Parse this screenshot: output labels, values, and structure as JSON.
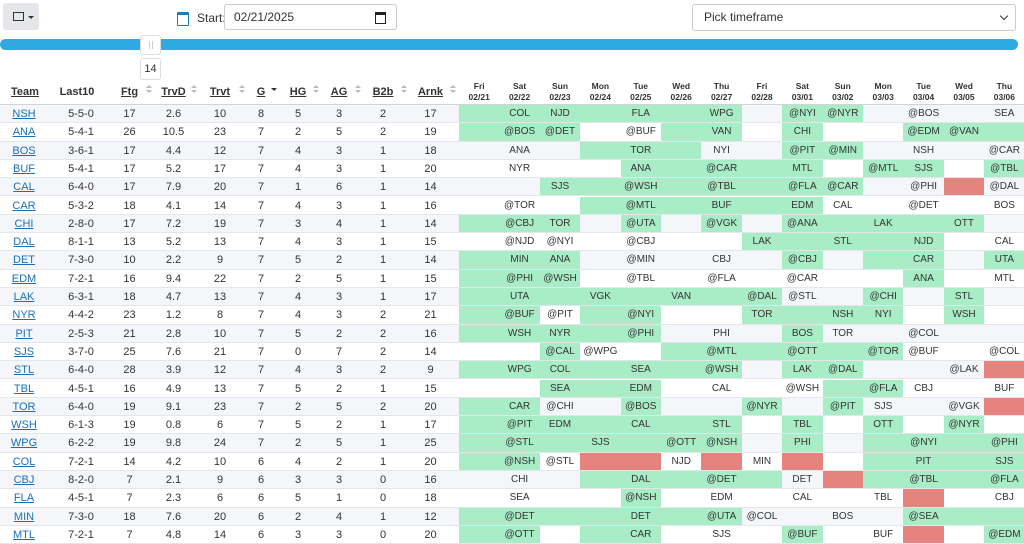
{
  "toolbar": {
    "start_label": "Start:",
    "start_date": "02/21/2025",
    "timeframe": "Pick timeframe",
    "slider_value": "14"
  },
  "table": {
    "columns": [
      "Team",
      "Last10",
      "Ftg",
      "TrvD",
      "Trvt",
      "G",
      "HG",
      "AG",
      "B2b",
      "Arnk"
    ],
    "dates": [
      [
        "Fri",
        "02/21"
      ],
      [
        "Sat",
        "02/22"
      ],
      [
        "Sun",
        "02/23"
      ],
      [
        "Mon",
        "02/24"
      ],
      [
        "Tue",
        "02/25"
      ],
      [
        "Wed",
        "02/26"
      ],
      [
        "Thu",
        "02/27"
      ],
      [
        "Fri",
        "02/28"
      ],
      [
        "Sat",
        "03/01"
      ],
      [
        "Sun",
        "03/02"
      ],
      [
        "Mon",
        "03/03"
      ],
      [
        "Tue",
        "03/04"
      ],
      [
        "Wed",
        "03/05"
      ],
      [
        "Thu",
        "03/06"
      ]
    ],
    "cell_colors": {
      "g": "#a8edc6",
      "r": "#e5837e",
      "w": ""
    },
    "rows": [
      {
        "team": "NSH",
        "stats": [
          "5-5-0",
          "17",
          "2.6",
          "10",
          "8",
          "5",
          "3",
          "2",
          "17"
        ],
        "games": [
          "",
          "COL",
          "NJD",
          "",
          "FLA",
          "",
          "WPG",
          "",
          "@NYI",
          "@NYR",
          "",
          "@BOS",
          "",
          "SEA"
        ],
        "status": "gggggggwggwwww"
      },
      {
        "team": "ANA",
        "stats": [
          "5-4-1",
          "26",
          "10.5",
          "23",
          "7",
          "2",
          "5",
          "2",
          "19"
        ],
        "games": [
          "",
          "@BOS",
          "@DET",
          "",
          "@BUF",
          "",
          "VAN",
          "",
          "CHI",
          "",
          "",
          "@EDM",
          "@VAN",
          ""
        ],
        "status": "gggwwggwgwwggg"
      },
      {
        "team": "BOS",
        "stats": [
          "3-6-1",
          "17",
          "4.4",
          "12",
          "7",
          "4",
          "3",
          "1",
          "18"
        ],
        "games": [
          "",
          "ANA",
          "",
          "",
          "TOR",
          "",
          "NYI",
          "",
          "@PIT",
          "@MIN",
          "",
          "NSH",
          "",
          "@CAR"
        ],
        "status": "wwwgggwwggwwww"
      },
      {
        "team": "BUF",
        "stats": [
          "5-4-1",
          "17",
          "5.2",
          "17",
          "7",
          "4",
          "3",
          "1",
          "20"
        ],
        "games": [
          "",
          "NYR",
          "",
          "",
          "ANA",
          "",
          "@CAR",
          "",
          "MTL",
          "",
          "@MTL",
          "SJS",
          "",
          "@TBL"
        ],
        "status": "wwwwgggggwggwg"
      },
      {
        "team": "CAL",
        "stats": [
          "6-4-0",
          "17",
          "7.9",
          "20",
          "7",
          "1",
          "6",
          "1",
          "14"
        ],
        "games": [
          "",
          "",
          "SJS",
          "",
          "@WSH",
          "",
          "@TBL",
          "",
          "@FLA",
          "@CAR",
          "",
          "@PHI",
          "",
          "@DAL"
        ],
        "status": "wwggggggggwwrw"
      },
      {
        "team": "CAR",
        "stats": [
          "5-3-2",
          "18",
          "4.1",
          "14",
          "7",
          "4",
          "3",
          "1",
          "16"
        ],
        "games": [
          "",
          "@TOR",
          "",
          "",
          "@MTL",
          "",
          "BUF",
          "",
          "EDM",
          "CAL",
          "",
          "@DET",
          "",
          "BOS"
        ],
        "status": "wwwggggggwwwww"
      },
      {
        "team": "CHI",
        "stats": [
          "2-8-0",
          "17",
          "7.2",
          "19",
          "7",
          "3",
          "4",
          "1",
          "14"
        ],
        "games": [
          "",
          "@CBJ",
          "TOR",
          "",
          "@UTA",
          "",
          "@VGK",
          "",
          "@ANA",
          "",
          "LAK",
          "",
          "OTT",
          ""
        ],
        "status": "gggwgwgwgggggw"
      },
      {
        "team": "DAL",
        "stats": [
          "8-1-1",
          "13",
          "5.2",
          "13",
          "7",
          "4",
          "3",
          "1",
          "15"
        ],
        "games": [
          "",
          "@NJD",
          "@NYI",
          "",
          "@CBJ",
          "",
          "",
          "LAK",
          "",
          "STL",
          "",
          "NJD",
          "",
          "CAL"
        ],
        "status": "wwwwwwwgggggww"
      },
      {
        "team": "DET",
        "stats": [
          "7-3-0",
          "10",
          "2.2",
          "9",
          "7",
          "5",
          "2",
          "1",
          "14"
        ],
        "games": [
          "",
          "MIN",
          "ANA",
          "",
          "@MIN",
          "",
          "CBJ",
          "",
          "@CBJ",
          "",
          "",
          "CAR",
          "",
          "UTA"
        ],
        "status": "gggwwwwwgwggwg"
      },
      {
        "team": "EDM",
        "stats": [
          "7-2-1",
          "16",
          "9.4",
          "22",
          "7",
          "2",
          "5",
          "1",
          "15"
        ],
        "games": [
          "",
          "@PHI",
          "@WSH",
          "",
          "@TBL",
          "",
          "@FLA",
          "",
          "@CAR",
          "",
          "",
          "ANA",
          "",
          "MTL"
        ],
        "status": "gggwwwwwwwwgww"
      },
      {
        "team": "LAK",
        "stats": [
          "6-3-1",
          "18",
          "4.7",
          "13",
          "7",
          "4",
          "3",
          "1",
          "17"
        ],
        "games": [
          "",
          "UTA",
          "",
          "VGK",
          "",
          "VAN",
          "",
          "@DAL",
          "@STL",
          "",
          "@CHI",
          "",
          "STL",
          ""
        ],
        "status": "ggggggggwwgwgw"
      },
      {
        "team": "NYR",
        "stats": [
          "4-4-2",
          "23",
          "1.2",
          "8",
          "7",
          "4",
          "3",
          "2",
          "21"
        ],
        "games": [
          "",
          "@BUF",
          "@PIT",
          "",
          "@NYI",
          "",
          "",
          "TOR",
          "",
          "NSH",
          "NYI",
          "",
          "WSH",
          ""
        ],
        "status": "ggwggwwggggwgw"
      },
      {
        "team": "PIT",
        "stats": [
          "2-5-3",
          "21",
          "2.8",
          "10",
          "7",
          "5",
          "2",
          "2",
          "16"
        ],
        "games": [
          "",
          "WSH",
          "NYR",
          "",
          "@PHI",
          "",
          "PHI",
          "",
          "BOS",
          "TOR",
          "",
          "@COL",
          "",
          ""
        ],
        "status": "gggggwwwgwwwww"
      },
      {
        "team": "SJS",
        "stats": [
          "3-7-0",
          "25",
          "7.6",
          "21",
          "7",
          "0",
          "7",
          "2",
          "14"
        ],
        "games": [
          "",
          "",
          "@CAL",
          "@WPG",
          "",
          "",
          "@MTL",
          "",
          "@OTT",
          "",
          "@TOR",
          "@BUF",
          "",
          "@COL"
        ],
        "status": "wwgwwggggggwww"
      },
      {
        "team": "STL",
        "stats": [
          "6-4-0",
          "28",
          "3.9",
          "12",
          "7",
          "4",
          "3",
          "2",
          "9"
        ],
        "games": [
          "",
          "WPG",
          "COL",
          "",
          "SEA",
          "",
          "@WSH",
          "",
          "LAK",
          "@DAL",
          "",
          "",
          "@LAK",
          ""
        ],
        "status": "gggggggwggwwwr"
      },
      {
        "team": "TBL",
        "stats": [
          "4-5-1",
          "16",
          "4.9",
          "13",
          "7",
          "5",
          "2",
          "1",
          "15"
        ],
        "games": [
          "",
          "",
          "SEA",
          "",
          "EDM",
          "",
          "CAL",
          "",
          "@WSH",
          "",
          "@FLA",
          "CBJ",
          "",
          "BUF"
        ],
        "status": "wwgggwwwwggwww"
      },
      {
        "team": "TOR",
        "stats": [
          "6-4-0",
          "19",
          "9.1",
          "23",
          "7",
          "2",
          "5",
          "2",
          "20"
        ],
        "games": [
          "",
          "CAR",
          "@CHI",
          "",
          "@BOS",
          "",
          "",
          "@NYR",
          "",
          "@PIT",
          "SJS",
          "",
          "@VGK",
          ""
        ],
        "status": "ggwwgwwgwgwwwr"
      },
      {
        "team": "WSH",
        "stats": [
          "6-1-3",
          "19",
          "0.8",
          "6",
          "7",
          "5",
          "2",
          "1",
          "17"
        ],
        "games": [
          "",
          "@PIT",
          "EDM",
          "",
          "CAL",
          "",
          "STL",
          "",
          "TBL",
          "",
          "OTT",
          "",
          "@NYR",
          ""
        ],
        "status": "gggggggwgwgwgw"
      },
      {
        "team": "WPG",
        "stats": [
          "6-2-2",
          "19",
          "9.8",
          "24",
          "7",
          "2",
          "5",
          "1",
          "25"
        ],
        "games": [
          "",
          "@STL",
          "",
          "SJS",
          "",
          "@OTT",
          "@NSH",
          "",
          "PHI",
          "",
          "",
          "@NYI",
          "",
          "@PHI"
        ],
        "status": "gggggggwgwgggg"
      },
      {
        "team": "COL",
        "stats": [
          "7-2-1",
          "14",
          "4.2",
          "10",
          "6",
          "4",
          "2",
          "1",
          "20"
        ],
        "games": [
          "",
          "@NSH",
          "@STL",
          "",
          "",
          "NJD",
          "",
          "MIN",
          "",
          "",
          "",
          "PIT",
          "",
          "SJS"
        ],
        "status": "ggwrrwrwrwgggg"
      },
      {
        "team": "CBJ",
        "stats": [
          "8-2-0",
          "7",
          "2.1",
          "9",
          "6",
          "3",
          "3",
          "0",
          "16"
        ],
        "games": [
          "",
          "CHI",
          "",
          "",
          "DAL",
          "",
          "@DET",
          "",
          "DET",
          "",
          "",
          "@TBL",
          "",
          "@FLA"
        ],
        "status": "wwwgggggwrgggg"
      },
      {
        "team": "FLA",
        "stats": [
          "4-5-1",
          "7",
          "2.3",
          "6",
          "6",
          "5",
          "1",
          "0",
          "18"
        ],
        "games": [
          "",
          "SEA",
          "",
          "",
          "@NSH",
          "",
          "EDM",
          "",
          "CAL",
          "",
          "TBL",
          "",
          "",
          "CBJ"
        ],
        "status": "wwwwgwwwwwwrww"
      },
      {
        "team": "MIN",
        "stats": [
          "7-3-0",
          "18",
          "7.6",
          "20",
          "6",
          "2",
          "4",
          "1",
          "12"
        ],
        "games": [
          "",
          "@DET",
          "",
          "",
          "DET",
          "",
          "@UTA",
          "@COL",
          "",
          "BOS",
          "",
          "@SEA",
          "",
          ""
        ],
        "status": "gggggggwwwwggg"
      },
      {
        "team": "MTL",
        "stats": [
          "7-2-1",
          "7",
          "4.8",
          "14",
          "6",
          "3",
          "3",
          "0",
          "20"
        ],
        "games": [
          "",
          "@OTT",
          "",
          "",
          "CAR",
          "",
          "SJS",
          "",
          "@BUF",
          "",
          "BUF",
          "",
          "",
          "@EDM"
        ],
        "status": "ggwggwwwgwwrwg"
      }
    ]
  }
}
